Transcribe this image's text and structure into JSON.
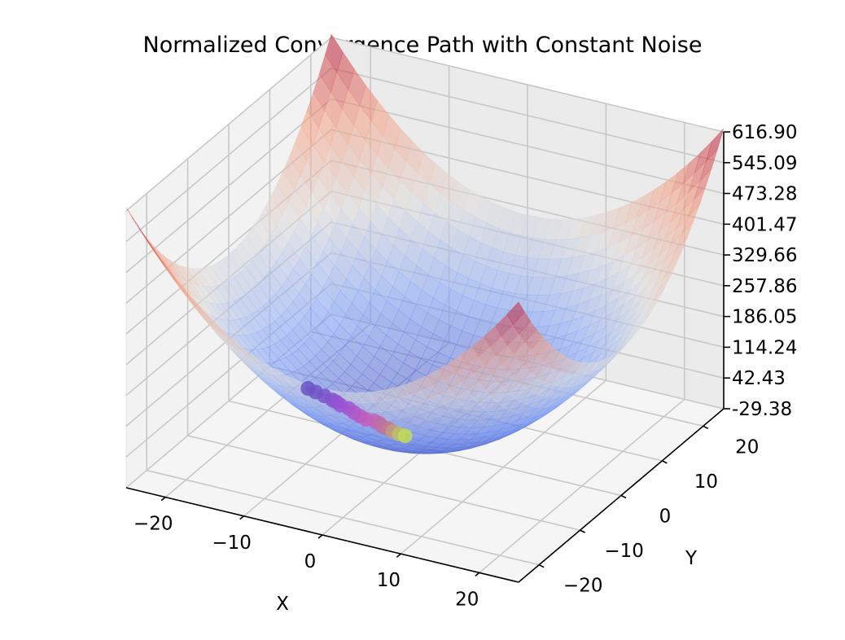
{
  "chart_data": {
    "type": "surface3d",
    "title": "Normalized Convergence Path with Constant Noise",
    "xlabel": "X",
    "ylabel": "Y",
    "zlabel": "",
    "xlim": [
      -25,
      25
    ],
    "ylim": [
      -25,
      25
    ],
    "zlim": [
      -29.38,
      616.9
    ],
    "x_ticks": [
      -20,
      -10,
      0,
      10,
      20
    ],
    "y_ticks": [
      -20,
      -10,
      0,
      10,
      20
    ],
    "z_tick_labels": [
      "-29.38",
      "42.43",
      "114.24",
      "186.05",
      "257.86",
      "329.66",
      "401.47",
      "473.28",
      "545.09",
      "616.90"
    ],
    "grid": true,
    "surface": {
      "function": "z = (x^2 + y^2) / 2",
      "colormap": "coolwarm",
      "alpha": 0.55
    },
    "path": {
      "name": "convergence path",
      "colormap": "viridis-like (purple to yellow-green)",
      "points": [
        {
          "x": -17.0,
          "y": 4.0,
          "z": 3.0
        },
        {
          "x": -15.8,
          "y": 3.6,
          "z": 3.0
        },
        {
          "x": -14.5,
          "y": 3.2,
          "z": 3.0
        },
        {
          "x": -13.2,
          "y": 2.7,
          "z": 3.0
        },
        {
          "x": -12.6,
          "y": 2.5,
          "z": 3.0
        },
        {
          "x": -11.8,
          "y": 2.0,
          "z": 3.0
        },
        {
          "x": -10.6,
          "y": 1.7,
          "z": 3.0
        },
        {
          "x": -9.6,
          "y": 1.1,
          "z": 3.0
        },
        {
          "x": -8.6,
          "y": 0.6,
          "z": 3.0
        },
        {
          "x": -7.6,
          "y": 0.2,
          "z": 3.0
        },
        {
          "x": -6.6,
          "y": 0.3,
          "z": 3.0
        },
        {
          "x": -5.8,
          "y": 0.0,
          "z": 3.0
        },
        {
          "x": -5.0,
          "y": -0.6,
          "z": 3.0
        },
        {
          "x": -4.3,
          "y": -0.7,
          "z": 3.0
        },
        {
          "x": -3.5,
          "y": -1.1,
          "z": 3.0
        },
        {
          "x": -2.6,
          "y": -1.3,
          "z": 3.0
        },
        {
          "x": -1.8,
          "y": -1.4,
          "z": 3.0
        }
      ]
    }
  }
}
